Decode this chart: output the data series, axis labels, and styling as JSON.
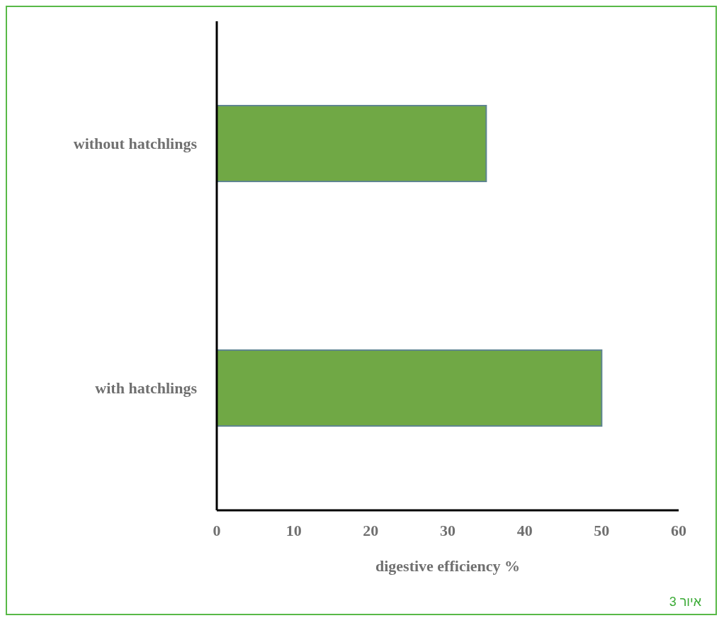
{
  "chart_data": {
    "type": "bar",
    "orientation": "horizontal",
    "categories": [
      "without hatchlings",
      "with hatchlings"
    ],
    "values": [
      35,
      50
    ],
    "color": "#70a845",
    "xlim": [
      0,
      60
    ],
    "xticks": [
      0,
      10,
      20,
      30,
      40,
      50,
      60
    ],
    "xlabel": "digestive efficiency %",
    "grid": false,
    "legend": false,
    "annotations": [
      "איור 3"
    ]
  }
}
